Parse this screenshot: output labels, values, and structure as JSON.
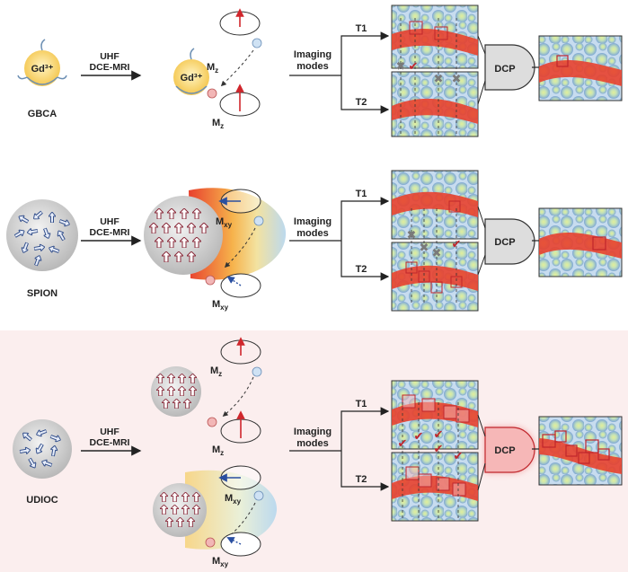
{
  "rows": [
    {
      "agent": "GBCA",
      "agent_symbol": "Gd³⁺",
      "arrow_label_1": "UHF",
      "arrow_label_2": "DCE-MRI",
      "mag_top": "M",
      "mag_top_sub": "z",
      "mag_bottom": "M",
      "mag_bottom_sub": "z",
      "modes_1": "Imaging",
      "modes_2": "modes",
      "t1": "T1",
      "t2": "T2",
      "gate": "DCP"
    },
    {
      "agent": "SPION",
      "arrow_label_1": "UHF",
      "arrow_label_2": "DCE-MRI",
      "mag_top": "M",
      "mag_top_sub": "xy",
      "mag_bottom": "M",
      "mag_bottom_sub": "xy",
      "modes_1": "Imaging",
      "modes_2": "modes",
      "t1": "T1",
      "t2": "T2",
      "gate": "DCP"
    },
    {
      "agent": "UDIOC",
      "arrow_label_1": "UHF",
      "arrow_label_2": "DCE-MRI",
      "mag_top": "M",
      "mag_top_sub": "z",
      "mag_top2": "M",
      "mag_top2_sub": "z",
      "mag_bottom": "M",
      "mag_bottom_sub": "xy",
      "mag_bottom2": "M",
      "mag_bottom2_sub": "xy",
      "modes_1": "Imaging",
      "modes_2": "modes",
      "t1": "T1",
      "t2": "T2",
      "gate": "DCP"
    }
  ],
  "colors": {
    "vessel": "#e8412e",
    "tissue_bg": "#c9def0",
    "cell": "#8fb4dc",
    "nucleus": "#d9e98f",
    "gate_fill": "#dddddd",
    "gate_glow": "#f19a9a",
    "highlight_bg": "#fbeeee",
    "check": "#c0262c",
    "cross": "#7a7a7a"
  }
}
